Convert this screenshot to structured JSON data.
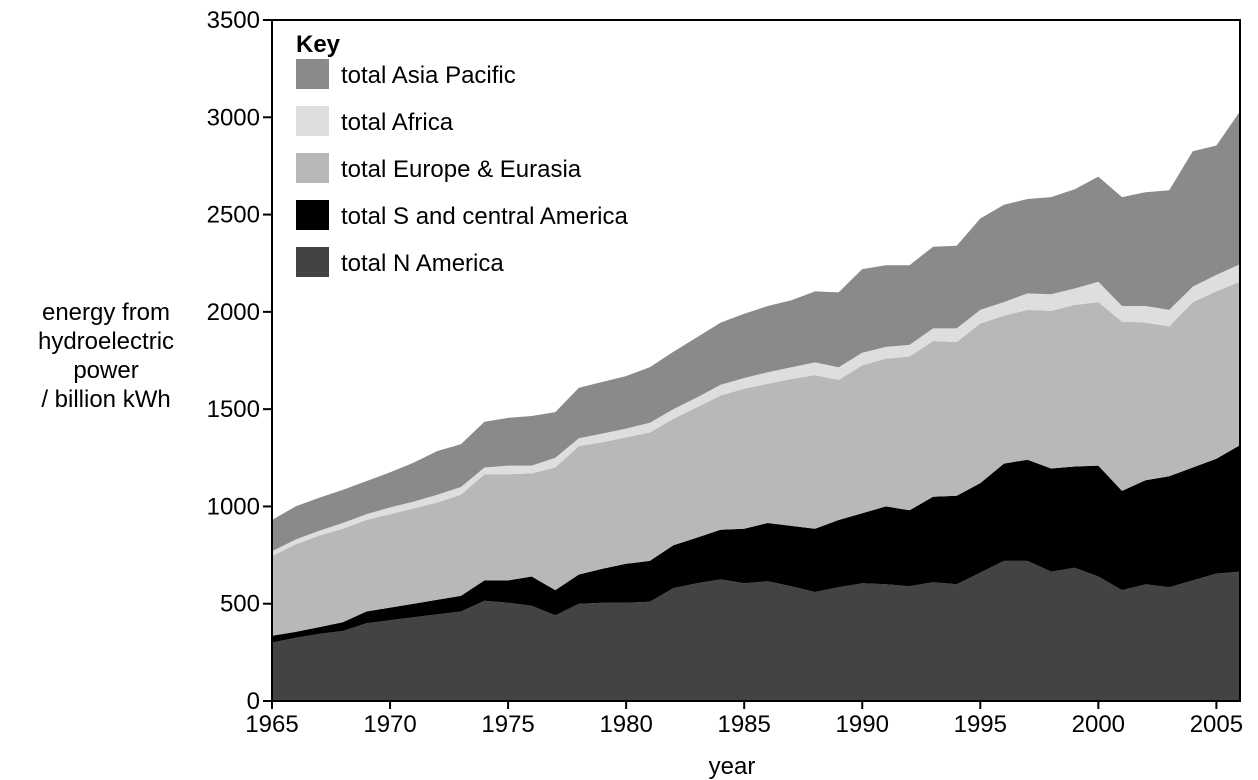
{
  "chart_data": {
    "type": "area",
    "stacked": true,
    "title": "",
    "xlabel": "year",
    "ylabel": [
      "energy from",
      "hydroelectric",
      "power",
      "/ billion kWh"
    ],
    "xlim": [
      1965,
      2006
    ],
    "ylim": [
      0,
      3500
    ],
    "x_ticks": [
      1965,
      1970,
      1975,
      1980,
      1985,
      1990,
      1995,
      2000,
      2005
    ],
    "y_ticks": [
      0,
      500,
      1000,
      1500,
      2000,
      2500,
      3000,
      3500
    ],
    "grid": false,
    "legend": {
      "title": "Key",
      "placement": "top-left",
      "order": [
        "total Asia Pacific",
        "total Africa",
        "total Europe & Eurasia",
        "total S and central America",
        "total N America"
      ]
    },
    "x": [
      1965,
      1966,
      1967,
      1968,
      1969,
      1970,
      1971,
      1972,
      1973,
      1974,
      1975,
      1976,
      1977,
      1978,
      1979,
      1980,
      1981,
      1982,
      1983,
      1984,
      1985,
      1986,
      1987,
      1988,
      1989,
      1990,
      1991,
      1992,
      1993,
      1994,
      1995,
      1996,
      1997,
      1998,
      1999,
      2000,
      2001,
      2002,
      2003,
      2004,
      2005,
      2006
    ],
    "series": [
      {
        "name": "total N America",
        "color": "#434343",
        "values": [
          300,
          325,
          345,
          360,
          400,
          415,
          430,
          445,
          460,
          515,
          505,
          490,
          440,
          500,
          505,
          505,
          510,
          580,
          605,
          625,
          605,
          615,
          590,
          560,
          585,
          605,
          600,
          590,
          610,
          600,
          660,
          720,
          720,
          665,
          685,
          640,
          570,
          600,
          585,
          620,
          655,
          665
        ]
      },
      {
        "name": "total S and central America",
        "color": "#000000",
        "values": [
          35,
          30,
          35,
          45,
          60,
          65,
          70,
          75,
          80,
          105,
          115,
          150,
          130,
          150,
          175,
          200,
          210,
          220,
          235,
          255,
          280,
          300,
          310,
          325,
          345,
          360,
          400,
          390,
          440,
          455,
          460,
          500,
          520,
          530,
          520,
          570,
          510,
          535,
          570,
          580,
          590,
          650
        ]
      },
      {
        "name": "total Europe & Eurasia",
        "color": "#b8b8b8",
        "values": [
          410,
          450,
          470,
          480,
          470,
          480,
          490,
          500,
          520,
          545,
          545,
          530,
          630,
          660,
          650,
          650,
          660,
          650,
          670,
          690,
          720,
          715,
          755,
          790,
          720,
          760,
          760,
          790,
          800,
          790,
          820,
          760,
          770,
          810,
          830,
          840,
          870,
          810,
          770,
          850,
          860,
          840
        ]
      },
      {
        "name": "total Africa",
        "color": "#dedede",
        "values": [
          25,
          25,
          25,
          30,
          30,
          35,
          35,
          40,
          40,
          35,
          45,
          40,
          50,
          40,
          45,
          45,
          50,
          50,
          50,
          55,
          55,
          60,
          60,
          65,
          65,
          65,
          60,
          60,
          65,
          70,
          70,
          70,
          85,
          85,
          85,
          105,
          80,
          85,
          85,
          80,
          85,
          90
        ]
      },
      {
        "name": "total Asia Pacific",
        "color": "#8a8a8a",
        "values": [
          160,
          170,
          170,
          170,
          170,
          180,
          200,
          225,
          220,
          235,
          245,
          255,
          235,
          260,
          265,
          270,
          285,
          295,
          310,
          320,
          330,
          340,
          345,
          365,
          385,
          430,
          420,
          410,
          420,
          425,
          470,
          500,
          485,
          500,
          510,
          540,
          560,
          585,
          615,
          695,
          665,
          785
        ]
      }
    ]
  }
}
